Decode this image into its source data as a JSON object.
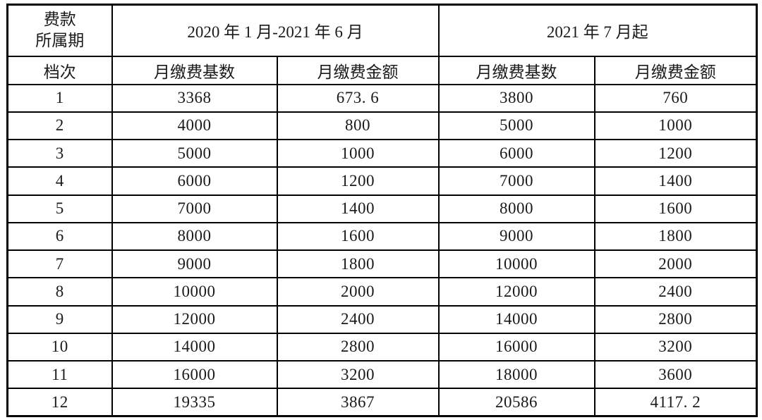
{
  "colors": {
    "background": "#ffffff",
    "border": "#000000",
    "text": "#1a1a1a"
  },
  "table": {
    "corner_header": {
      "line1": "费款",
      "line2": "所属期"
    },
    "period_headers": [
      "2020 年 1 月-2021 年 6 月",
      "2021 年 7 月起"
    ],
    "sub_headers": {
      "tier": "档次",
      "base_1": "月缴费基数",
      "amount_1": "月缴费金额",
      "base_2": "月缴费基数",
      "amount_2": "月缴费金额"
    },
    "rows": [
      [
        "1",
        "3368",
        "673. 6",
        "3800",
        "760"
      ],
      [
        "2",
        "4000",
        "800",
        "5000",
        "1000"
      ],
      [
        "3",
        "5000",
        "1000",
        "6000",
        "1200"
      ],
      [
        "4",
        "6000",
        "1200",
        "7000",
        "1400"
      ],
      [
        "5",
        "7000",
        "1400",
        "8000",
        "1600"
      ],
      [
        "6",
        "8000",
        "1600",
        "9000",
        "1800"
      ],
      [
        "7",
        "9000",
        "1800",
        "10000",
        "2000"
      ],
      [
        "8",
        "10000",
        "2000",
        "12000",
        "2400"
      ],
      [
        "9",
        "12000",
        "2400",
        "14000",
        "2800"
      ],
      [
        "10",
        "14000",
        "2800",
        "16000",
        "3200"
      ],
      [
        "11",
        "16000",
        "3200",
        "18000",
        "3600"
      ],
      [
        "12",
        "19335",
        "3867",
        "20586",
        "4117. 2"
      ]
    ]
  }
}
